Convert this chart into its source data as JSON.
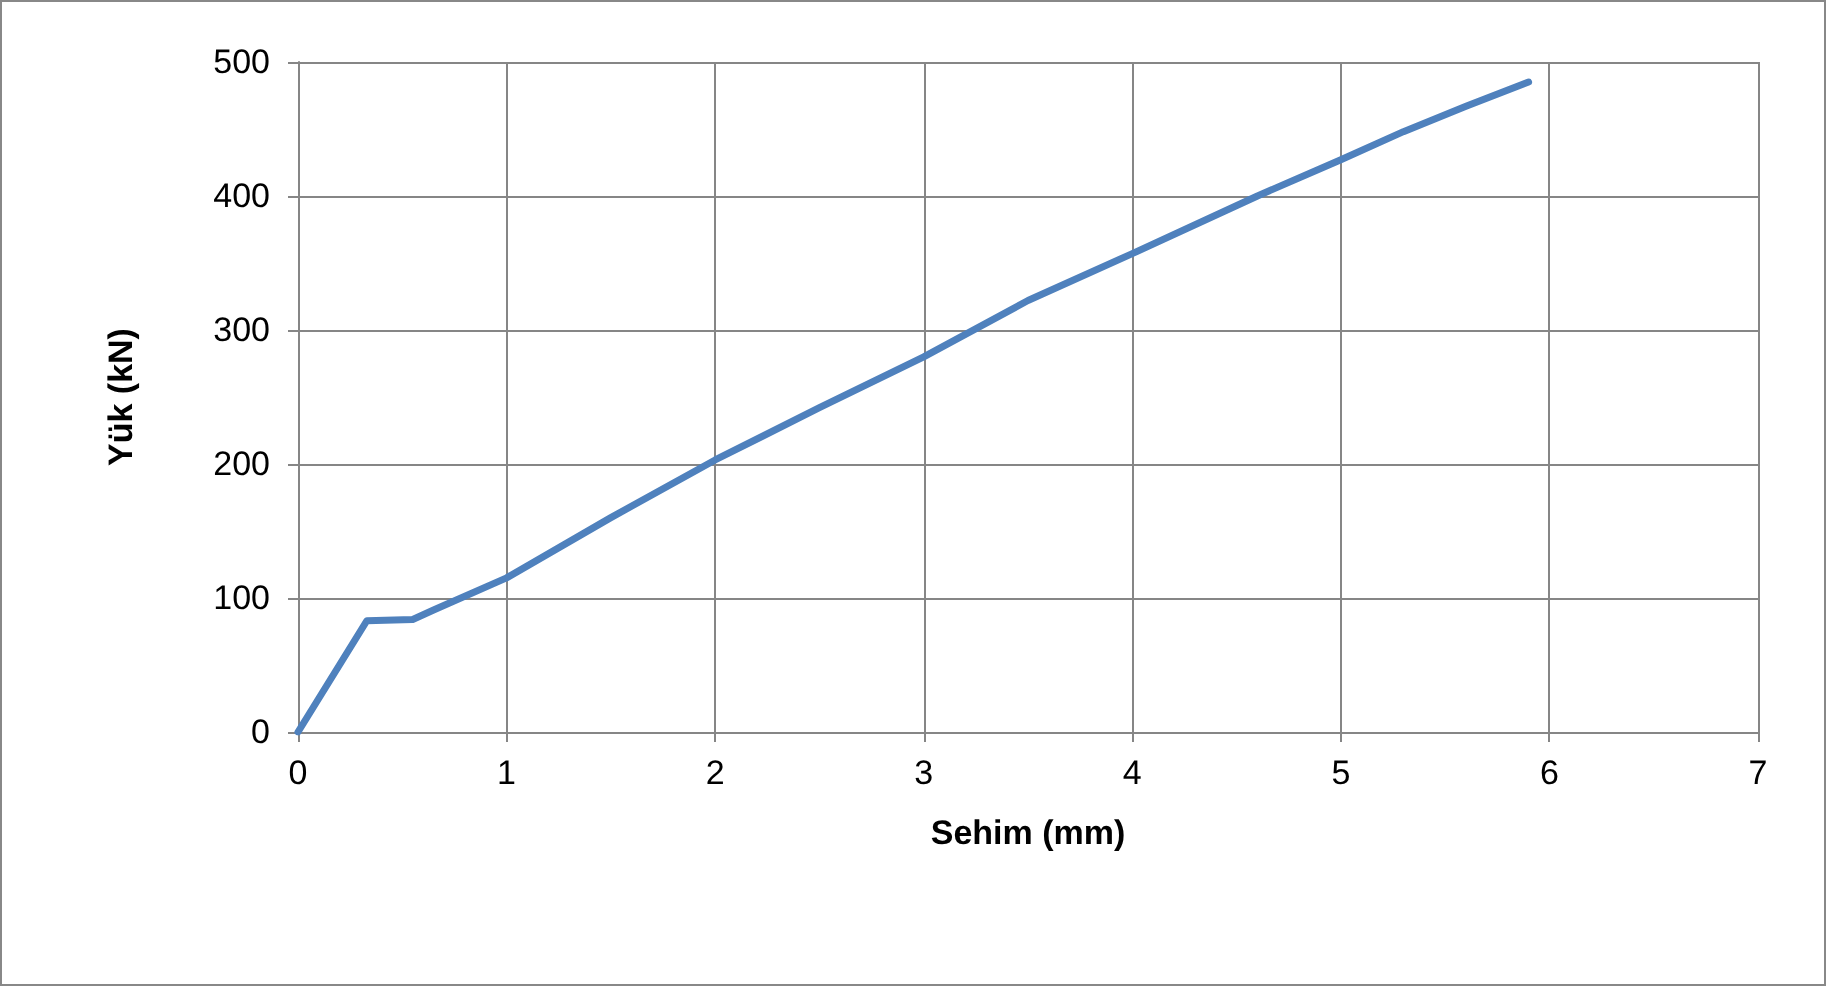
{
  "chart_data": {
    "type": "line",
    "xlabel": "Sehim (mm)",
    "ylabel": "Yük (kN)",
    "x": [
      0,
      0.33,
      0.55,
      0.65,
      1.0,
      1.5,
      2.0,
      2.5,
      3.0,
      3.5,
      4.0,
      4.6,
      5.0,
      5.3,
      5.6,
      5.9
    ],
    "series": [
      {
        "color": "#4f81bd",
        "values": [
          0,
          83,
          84,
          91,
          115,
          160,
          203,
          242,
          280,
          322,
          357,
          400,
          427,
          448,
          467,
          485
        ]
      }
    ],
    "xlim": [
      0,
      7
    ],
    "xticks": [
      0,
      1,
      2,
      3,
      4,
      5,
      6,
      7
    ],
    "ylim": [
      0,
      500
    ],
    "yticks": [
      0,
      100,
      200,
      300,
      400,
      500
    ],
    "grid": true,
    "marker": "none",
    "line_style": "solid"
  }
}
